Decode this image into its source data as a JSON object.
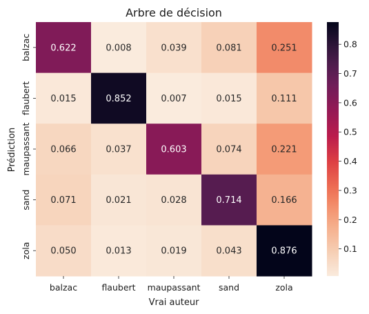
{
  "chart_data": {
    "type": "heatmap",
    "title": "Arbre de décision",
    "xlabel": "Vrai auteur",
    "ylabel": "Prédiction",
    "x_categories": [
      "balzac",
      "flaubert",
      "maupassant",
      "sand",
      "zola"
    ],
    "y_categories": [
      "balzac",
      "flaubert",
      "maupassant",
      "sand",
      "zola"
    ],
    "values": [
      [
        0.622,
        0.008,
        0.039,
        0.081,
        0.251
      ],
      [
        0.015,
        0.852,
        0.007,
        0.015,
        0.111
      ],
      [
        0.066,
        0.037,
        0.603,
        0.074,
        0.221
      ],
      [
        0.071,
        0.021,
        0.028,
        0.714,
        0.166
      ],
      [
        0.05,
        0.013,
        0.019,
        0.043,
        0.876
      ]
    ],
    "value_format": "0.000",
    "colormap": "rocket_r",
    "colorbar": {
      "range": [
        0.007,
        0.876
      ],
      "ticks": [
        0.1,
        0.2,
        0.3,
        0.4,
        0.5,
        0.6,
        0.7,
        0.8
      ],
      "tick_labels": [
        "0.1",
        "0.2",
        "0.3",
        "0.4",
        "0.5",
        "0.6",
        "0.7",
        "0.8"
      ]
    }
  }
}
